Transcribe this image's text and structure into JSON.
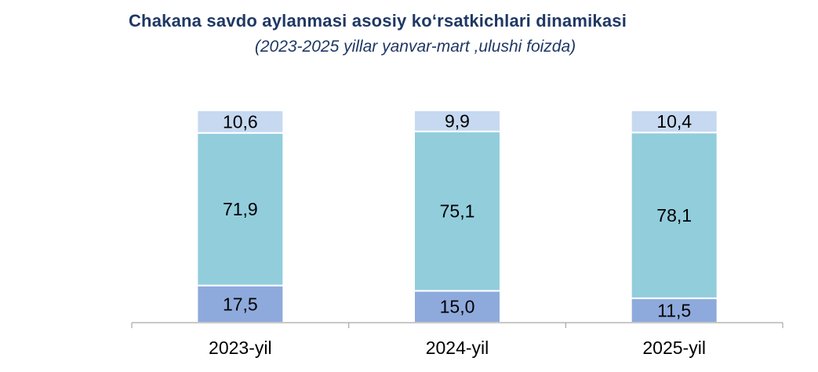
{
  "header": {
    "title": "Chakana savdo aylanmasi asosiy ko‘rsatkichlari dinamikasi",
    "subtitle": "(2023-2025 yillar yanvar-mart ,ulushi foizda)"
  },
  "chart_data": {
    "type": "bar",
    "stacked": true,
    "categories": [
      "2023-yil",
      "2024-yil",
      "2025-yil"
    ],
    "series": [
      {
        "values": [
          17.5,
          15.0,
          11.5
        ],
        "labels": [
          "17,5",
          "15,0",
          "11,5"
        ],
        "color": "#8eaadc"
      },
      {
        "values": [
          71.9,
          75.1,
          78.1
        ],
        "labels": [
          "71,9",
          "75,1",
          "78,1"
        ],
        "color": "#92cddc"
      },
      {
        "values": [
          10.6,
          9.9,
          10.4
        ],
        "labels": [
          "10,6",
          "9,9",
          "10,4"
        ],
        "color": "#c6d9f1"
      }
    ],
    "ylim": [
      0,
      100
    ],
    "grid": false,
    "legend": "none",
    "xlabel": "",
    "ylabel": ""
  }
}
